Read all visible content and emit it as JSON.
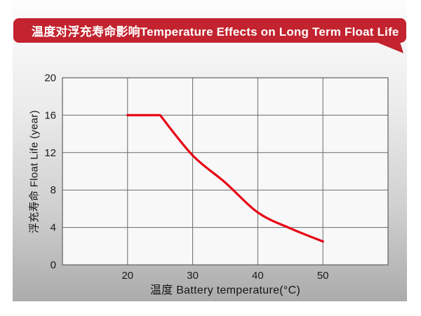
{
  "banner": {
    "title": "温度对浮充寿命影响Temperature Effects on Long Term Float Life",
    "bg_color": "#c2232e",
    "text_color": "#ffffff"
  },
  "chart_data": {
    "type": "line",
    "title": "温度对浮充寿命影响Temperature Effects on Long Term Float Life",
    "xlabel": "温度 Battery temperature(°C)",
    "ylabel": "浮充寿命 Float Life (year)",
    "xlim": [
      10,
      60
    ],
    "ylim": [
      0,
      20
    ],
    "xticks": [
      20,
      30,
      40,
      50
    ],
    "yticks": [
      0,
      4,
      8,
      12,
      16,
      20
    ],
    "grid": true,
    "legend_position": "none",
    "series": [
      {
        "name": "float-life-vs-temperature",
        "color": "#e60014",
        "points": [
          [
            20,
            16
          ],
          [
            25,
            16
          ],
          [
            30,
            11.7
          ],
          [
            35,
            8.8
          ],
          [
            40,
            5.6
          ],
          [
            45,
            3.9
          ],
          [
            50,
            2.5
          ]
        ]
      }
    ]
  },
  "colors": {
    "gridline": "#6a6a6a",
    "plot_border": "#5f5f5f",
    "plot_bg": "#f8f8f8",
    "axis_text": "#1a1a1a"
  }
}
